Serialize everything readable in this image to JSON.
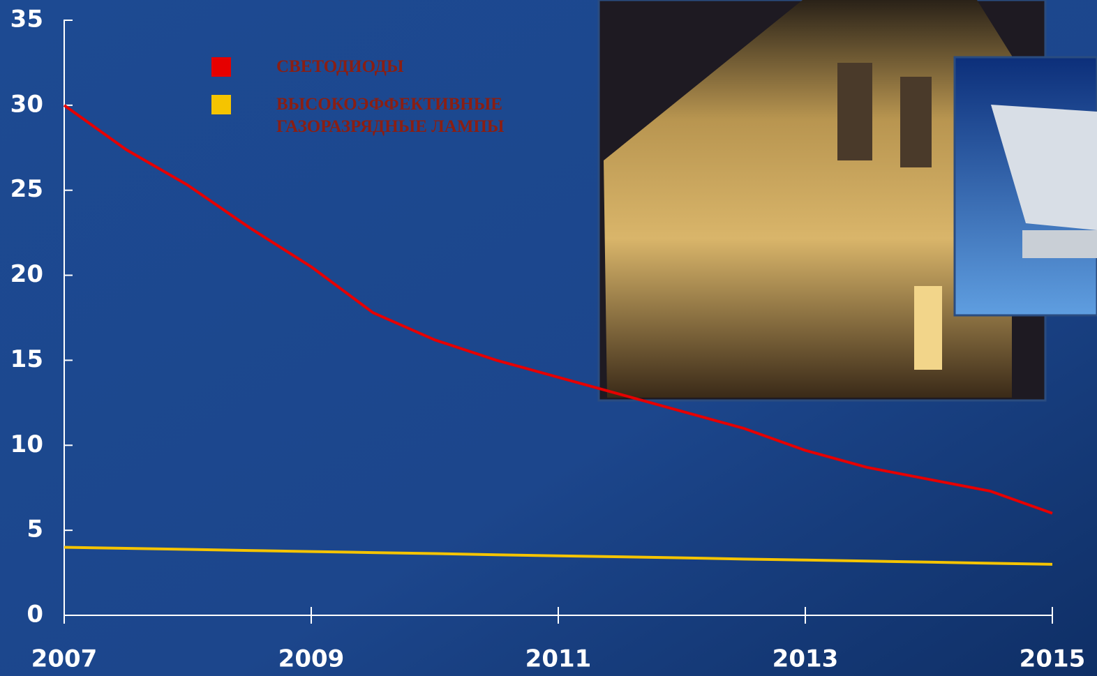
{
  "chart_data": {
    "type": "line",
    "x": [
      2007,
      2007.5,
      2008,
      2008.5,
      2009,
      2009.5,
      2010,
      2010.5,
      2011,
      2011.5,
      2012,
      2012.5,
      2013,
      2013.5,
      2014,
      2014.5,
      2015
    ],
    "series": [
      {
        "name": "СВЕТОДИОДЫ",
        "color": "#e60000",
        "values": [
          30,
          27.4,
          25.3,
          22.8,
          20.5,
          17.8,
          16.2,
          15.0,
          14.0,
          13.0,
          12.0,
          11.0,
          9.7,
          8.7,
          8.0,
          7.3,
          6.0
        ]
      },
      {
        "name": "ВЫСОКОЭФФЕКТИВНЫЕ ГАЗОРАЗРЯДНЫЕ ЛАМПЫ",
        "color": "#f5c400",
        "values": [
          4,
          3.94,
          3.88,
          3.81,
          3.75,
          3.69,
          3.63,
          3.56,
          3.5,
          3.44,
          3.38,
          3.31,
          3.25,
          3.19,
          3.13,
          3.06,
          3.0
        ]
      }
    ],
    "xlim": [
      2007,
      2015
    ],
    "xticks": [
      2007,
      2009,
      2011,
      2013,
      2015
    ],
    "ylim": [
      0,
      35
    ],
    "yticks": [
      0,
      5,
      10,
      15,
      20,
      25,
      30,
      35
    ]
  }
}
